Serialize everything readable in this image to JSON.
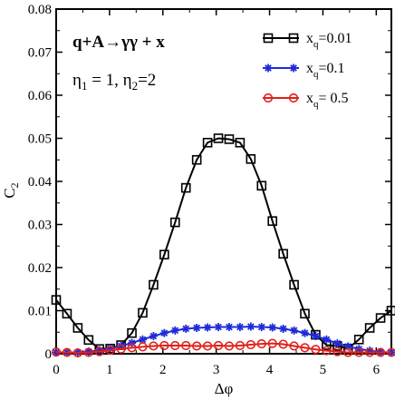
{
  "chart_data": {
    "type": "line",
    "xlabel": "Δφ",
    "ylabel": "C",
    "ylabel_sub": "2",
    "xlim": [
      0,
      6.2832
    ],
    "ylim": [
      0,
      0.08
    ],
    "grid": false,
    "legend_position": "top-right",
    "xticks": [
      {
        "value": 0,
        "label": "0"
      },
      {
        "value": 1,
        "label": "1"
      },
      {
        "value": 2,
        "label": "2"
      },
      {
        "value": 3,
        "label": "3"
      },
      {
        "value": 4,
        "label": "4"
      },
      {
        "value": 5,
        "label": "5"
      },
      {
        "value": 6,
        "label": "6"
      }
    ],
    "yticks": [
      {
        "value": 0,
        "label": "0"
      },
      {
        "value": 0.01,
        "label": "0.01"
      },
      {
        "value": 0.02,
        "label": "0.02"
      },
      {
        "value": 0.03,
        "label": "0.03"
      },
      {
        "value": 0.04,
        "label": "0.04"
      },
      {
        "value": 0.05,
        "label": "0.05"
      },
      {
        "value": 0.06,
        "label": "0.06"
      },
      {
        "value": 0.07,
        "label": "0.07"
      },
      {
        "value": 0.08,
        "label": "0.08"
      }
    ],
    "annotations": {
      "process": "q+A→γγ + x",
      "eta1": "η",
      "eta1_sub": "1",
      "eta1_val": " = 1, ",
      "eta2": "η",
      "eta2_sub": "2",
      "eta2_val": "=2"
    },
    "x": [
      0.0,
      0.2027,
      0.4054,
      0.6081,
      0.8107,
      1.0134,
      1.2161,
      1.4188,
      1.6215,
      1.8242,
      2.0268,
      2.2295,
      2.4322,
      2.6349,
      2.8376,
      3.0403,
      3.2429,
      3.4456,
      3.6483,
      3.851,
      4.0537,
      4.2564,
      4.459,
      4.6617,
      4.8644,
      5.0671,
      5.2698,
      5.4725,
      5.6751,
      5.8778,
      6.0805,
      6.2832
    ],
    "series": [
      {
        "label_main": "x",
        "label_sub": "q",
        "label_val": "=0.01",
        "color": "#000000",
        "marker": "square",
        "values": [
          0.0125,
          0.0093,
          0.006,
          0.0032,
          0.0011,
          0.0012,
          0.002,
          0.0048,
          0.0095,
          0.016,
          0.023,
          0.0305,
          0.0385,
          0.045,
          0.049,
          0.05,
          0.0498,
          0.049,
          0.0452,
          0.039,
          0.0308,
          0.0232,
          0.016,
          0.0093,
          0.0044,
          0.002,
          0.0018,
          0.0012,
          0.0033,
          0.006,
          0.0083,
          0.01
        ]
      },
      {
        "label_main": "x",
        "label_sub": "q",
        "label_val": "=0.1",
        "color": "#1f2bd8",
        "marker": "star",
        "values": [
          0.0003,
          0.0003,
          0.0003,
          0.0005,
          0.0008,
          0.0012,
          0.0018,
          0.0025,
          0.0033,
          0.0041,
          0.0048,
          0.0054,
          0.0058,
          0.006,
          0.0061,
          0.0062,
          0.0062,
          0.0062,
          0.0063,
          0.0062,
          0.0061,
          0.0058,
          0.0054,
          0.0048,
          0.0041,
          0.0033,
          0.0024,
          0.0017,
          0.0011,
          0.0007,
          0.0004,
          0.0003
        ]
      },
      {
        "label_main": "x",
        "label_sub": "q",
        "label_val": "= 0.5",
        "color": "#e0201b",
        "marker": "circle",
        "values": [
          0.0004,
          0.0003,
          0.0002,
          0.0003,
          0.0005,
          0.0008,
          0.0011,
          0.0014,
          0.0016,
          0.0018,
          0.0019,
          0.0019,
          0.0019,
          0.0018,
          0.0018,
          0.0019,
          0.0018,
          0.0019,
          0.0021,
          0.0023,
          0.0024,
          0.0022,
          0.0018,
          0.0014,
          0.001,
          0.0007,
          0.0005,
          0.0003,
          0.0003,
          0.0003,
          0.0003,
          0.0003
        ]
      }
    ]
  }
}
